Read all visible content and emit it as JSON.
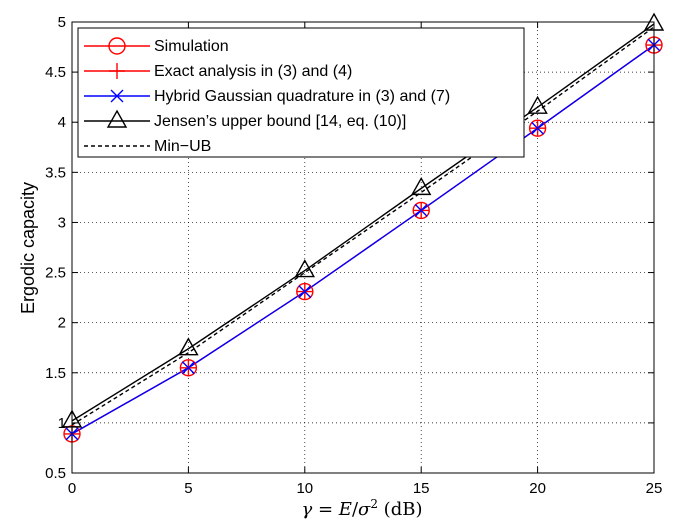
{
  "chart_data": {
    "type": "line",
    "title": "",
    "xlabel": {
      "gamma": "γ",
      "eq": " = ",
      "E": "E",
      "slash": "/",
      "sigma": "σ",
      "sup": "2",
      "unit": " (dB)"
    },
    "ylabel": "Ergodic capacity",
    "xlim": [
      0,
      25
    ],
    "ylim": [
      0.5,
      5
    ],
    "xticks": [
      0,
      5,
      10,
      15,
      20,
      25
    ],
    "yticks": [
      0.5,
      1,
      1.5,
      2,
      2.5,
      3,
      3.5,
      4,
      4.5,
      5
    ],
    "xtick_labels": [
      "0",
      "5",
      "10",
      "15",
      "20",
      "25"
    ],
    "ytick_labels": [
      "0.5",
      "1",
      "1.5",
      "2",
      "2.5",
      "3",
      "3.5",
      "4",
      "4.5",
      "5"
    ],
    "grid": true,
    "legend_position": "top-left",
    "x": [
      0,
      5,
      10,
      15,
      20,
      25
    ],
    "series": [
      {
        "name": "Simulation",
        "values": [
          0.89,
          1.55,
          2.31,
          3.12,
          3.94,
          4.77
        ],
        "color": "#ff0000",
        "marker": "circle",
        "line": "none"
      },
      {
        "name": "Exact analysis in (3) and (4)",
        "values": [
          0.89,
          1.55,
          2.31,
          3.12,
          3.94,
          4.77
        ],
        "color": "#ff0000",
        "marker": "plus",
        "line": "solid"
      },
      {
        "name": "Hybrid Gaussian quadrature in (3) and (7)",
        "values": [
          0.89,
          1.55,
          2.31,
          3.12,
          3.94,
          4.77
        ],
        "color": "#0000ff",
        "marker": "x",
        "line": "solid"
      },
      {
        "name": "Jensen’s upper bound [14, eq. (10)]",
        "values": [
          1.02,
          1.74,
          2.52,
          3.34,
          4.15,
          4.98
        ],
        "color": "#000000",
        "marker": "triangle",
        "line": "solid"
      },
      {
        "name": "Min−UB",
        "values": [
          0.98,
          1.7,
          2.5,
          3.3,
          4.11,
          4.95
        ],
        "color": "#000000",
        "marker": "none",
        "line": "dashed"
      }
    ]
  }
}
